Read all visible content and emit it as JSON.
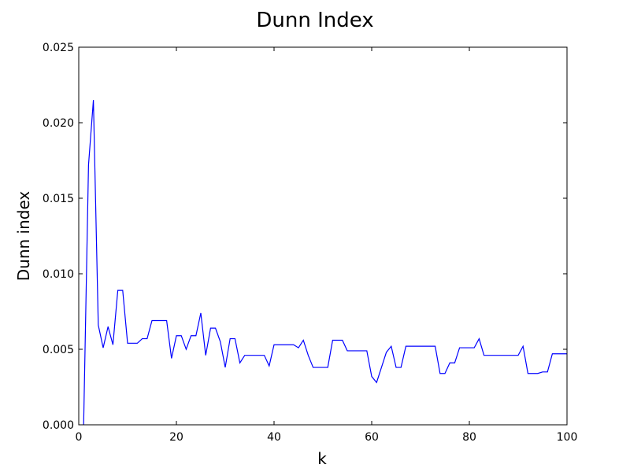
{
  "chart_data": {
    "type": "line",
    "title": "Dunn Index",
    "xlabel": "k",
    "ylabel": "Dunn index",
    "xlim": [
      0,
      100
    ],
    "ylim": [
      0,
      0.025
    ],
    "grid": false,
    "legend": "none",
    "x_ticks": [
      {
        "value": 0,
        "label": "0"
      },
      {
        "value": 20,
        "label": "20"
      },
      {
        "value": 40,
        "label": "40"
      },
      {
        "value": 60,
        "label": "60"
      },
      {
        "value": 80,
        "label": "80"
      },
      {
        "value": 100,
        "label": "100"
      }
    ],
    "y_ticks": [
      {
        "value": 0,
        "label": "0.000"
      },
      {
        "value": 0.005,
        "label": "0.005"
      },
      {
        "value": 0.01,
        "label": "0.010"
      },
      {
        "value": 0.015,
        "label": "0.015"
      },
      {
        "value": 0.02,
        "label": "0.020"
      },
      {
        "value": 0.025,
        "label": "0.025"
      }
    ],
    "series": [
      {
        "color": "#0000ff",
        "x": [
          1,
          2,
          3,
          4,
          5,
          6,
          7,
          8,
          9,
          10,
          11,
          12,
          13,
          14,
          15,
          16,
          17,
          18,
          19,
          20,
          21,
          22,
          23,
          24,
          25,
          26,
          27,
          28,
          29,
          30,
          31,
          32,
          33,
          34,
          35,
          36,
          37,
          38,
          39,
          40,
          41,
          42,
          43,
          44,
          45,
          46,
          47,
          48,
          49,
          50,
          51,
          52,
          53,
          54,
          55,
          56,
          57,
          58,
          59,
          60,
          61,
          62,
          63,
          64,
          65,
          66,
          67,
          68,
          69,
          70,
          71,
          72,
          73,
          74,
          75,
          76,
          77,
          78,
          79,
          80,
          81,
          82,
          83,
          84,
          85,
          86,
          87,
          88,
          89,
          90,
          91,
          92,
          93,
          94,
          95,
          96,
          97,
          98,
          99,
          100
        ],
        "values": [
          0.0,
          0.0172,
          0.0215,
          0.0066,
          0.0051,
          0.0065,
          0.0053,
          0.0089,
          0.0089,
          0.0054,
          0.0054,
          0.0054,
          0.0057,
          0.0057,
          0.0069,
          0.0069,
          0.0069,
          0.0069,
          0.0044,
          0.0059,
          0.0059,
          0.005,
          0.0059,
          0.0059,
          0.0074,
          0.0046,
          0.0064,
          0.0064,
          0.0055,
          0.0038,
          0.0057,
          0.0057,
          0.0041,
          0.0046,
          0.0046,
          0.0046,
          0.0046,
          0.0046,
          0.0039,
          0.0053,
          0.0053,
          0.0053,
          0.0053,
          0.0053,
          0.0051,
          0.0056,
          0.0046,
          0.0038,
          0.0038,
          0.0038,
          0.0038,
          0.0056,
          0.0056,
          0.0056,
          0.0049,
          0.0049,
          0.0049,
          0.0049,
          0.0049,
          0.0032,
          0.0028,
          0.0038,
          0.0048,
          0.0052,
          0.0038,
          0.0038,
          0.0052,
          0.0052,
          0.0052,
          0.0052,
          0.0052,
          0.0052,
          0.0052,
          0.0034,
          0.0034,
          0.0041,
          0.0041,
          0.0051,
          0.0051,
          0.0051,
          0.0051,
          0.0057,
          0.0046,
          0.0046,
          0.0046,
          0.0046,
          0.0046,
          0.0046,
          0.0046,
          0.0046,
          0.0052,
          0.0034,
          0.0034,
          0.0034,
          0.0035,
          0.0035,
          0.0047,
          0.0047,
          0.0047,
          0.0047
        ]
      }
    ]
  }
}
